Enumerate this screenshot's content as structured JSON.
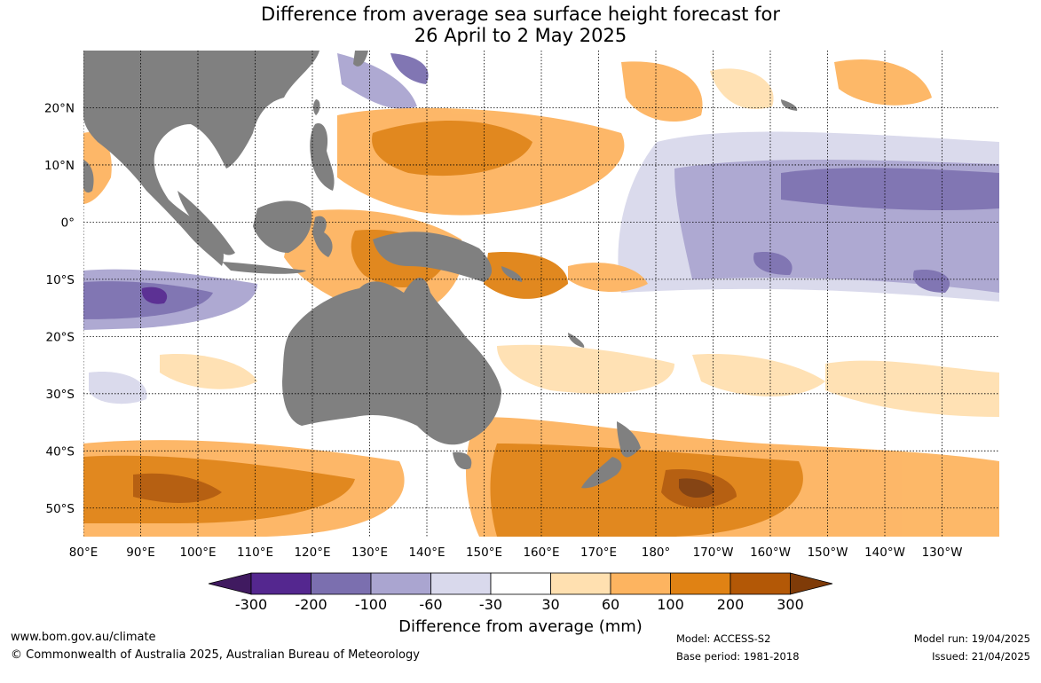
{
  "header": {
    "title_line1": "Difference from average sea surface height forecast for",
    "title_line2": "26 April to 2 May 2025"
  },
  "map": {
    "lon_labels": [
      "80°E",
      "90°E",
      "100°E",
      "110°E",
      "120°E",
      "130°E",
      "140°E",
      "150°E",
      "160°E",
      "170°E",
      "180°",
      "170°W",
      "160°W",
      "150°W",
      "140°W",
      "130°W"
    ],
    "lat_labels": [
      "20°N",
      "10°N",
      "0°",
      "10°S",
      "20°S",
      "30°S",
      "40°S",
      "50°S"
    ],
    "lon_values": [
      80,
      90,
      100,
      110,
      120,
      130,
      140,
      150,
      160,
      170,
      180,
      190,
      200,
      210,
      220,
      230
    ],
    "lat_values": [
      20,
      10,
      0,
      -10,
      -20,
      -30,
      -40,
      -50
    ],
    "lon_range": [
      80,
      240
    ],
    "lat_range": [
      -55,
      30
    ],
    "land_color": "#808080",
    "gridlines": true
  },
  "colorbar": {
    "labels": [
      "-300",
      "-200",
      "-100",
      "-60",
      "-30",
      "30",
      "60",
      "100",
      "200",
      "300"
    ],
    "colors": [
      "#401a60",
      "#54278f",
      "#7b6faf",
      "#aaa5d0",
      "#d9d9ec",
      "#ffffff",
      "#ffe0b0",
      "#fdb460",
      "#e08214",
      "#b35806",
      "#7f3b08"
    ],
    "title": "Difference from average (mm)"
  },
  "footer": {
    "website": "www.bom.gov.au/climate",
    "copyright": "© Commonwealth of Australia 2025, Australian Bureau of Meteorology",
    "model": "Model: ACCESS-S2",
    "base_period": "Base period: 1981-2018",
    "model_run": "Model run: 19/04/2025",
    "issued": "Issued: 21/04/2025"
  }
}
